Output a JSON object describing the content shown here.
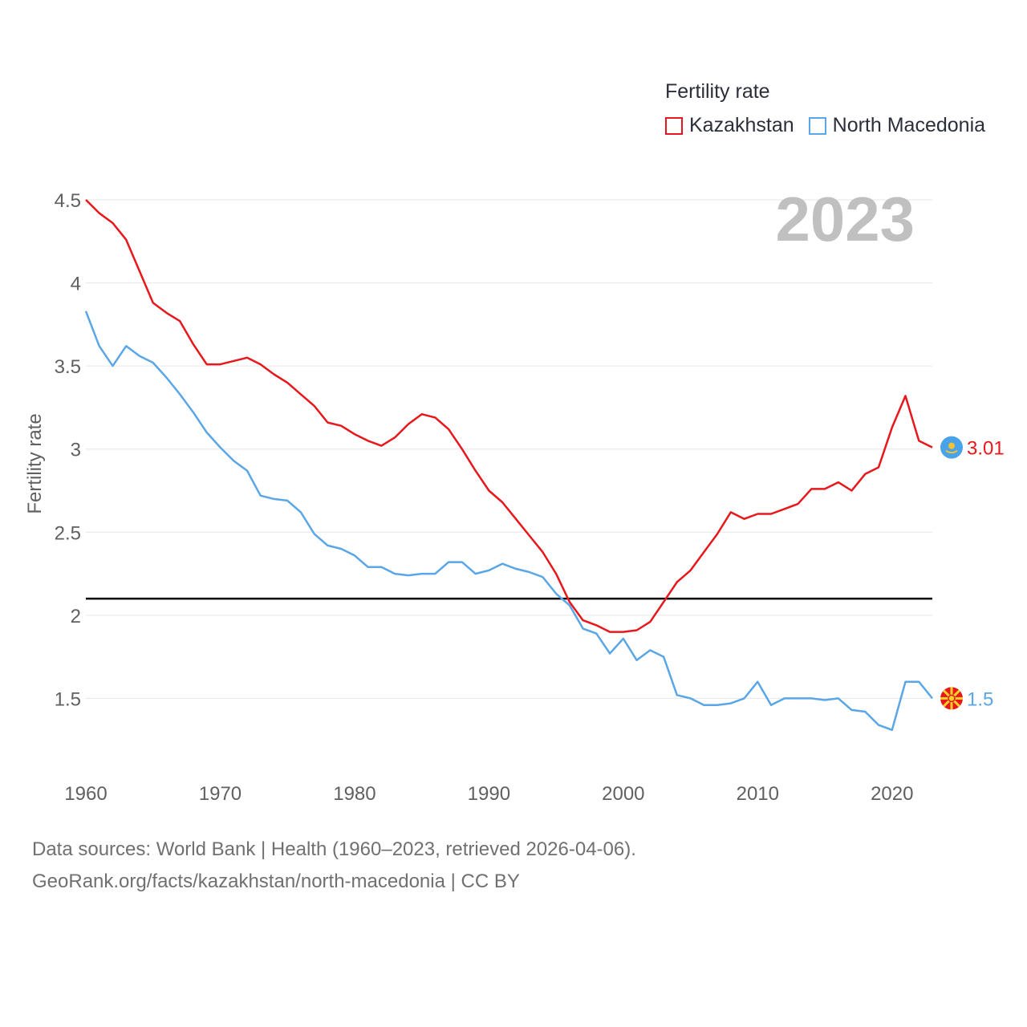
{
  "legend": {
    "title": "Fertility rate",
    "items": [
      {
        "name": "Kazakhstan",
        "color": "#e8171b"
      },
      {
        "name": "North Macedonia",
        "color": "#5aa6e6"
      }
    ]
  },
  "current_year": "2023",
  "source": {
    "line1": "Data sources: World Bank | Health (1960–2023, retrieved 2026-04-06).",
    "line2": "GeoRank.org/facts/kazakhstan/north-macedonia | CC BY"
  },
  "chart_data": {
    "type": "line",
    "title": "Fertility rate",
    "xlabel": "",
    "ylabel": "Fertility rate",
    "xlim": [
      1960,
      2023
    ],
    "ylim": [
      1.0,
      4.5
    ],
    "x_ticks": [
      1960,
      1970,
      1980,
      1990,
      2000,
      2010,
      2020
    ],
    "y_ticks": [
      1.5,
      2,
      2.5,
      3,
      3.5,
      4,
      4.5
    ],
    "y_tick_labels": [
      "1.5",
      "2",
      "2.5",
      "3",
      "3.5",
      "4",
      "4.5"
    ],
    "reference_line": 2.1,
    "grid": true,
    "x": [
      1960,
      1961,
      1962,
      1963,
      1964,
      1965,
      1966,
      1967,
      1968,
      1969,
      1970,
      1971,
      1972,
      1973,
      1974,
      1975,
      1976,
      1977,
      1978,
      1979,
      1980,
      1981,
      1982,
      1983,
      1984,
      1985,
      1986,
      1987,
      1988,
      1989,
      1990,
      1991,
      1992,
      1993,
      1994,
      1995,
      1996,
      1997,
      1998,
      1999,
      2000,
      2001,
      2002,
      2003,
      2004,
      2005,
      2006,
      2007,
      2008,
      2009,
      2010,
      2011,
      2012,
      2013,
      2014,
      2015,
      2016,
      2017,
      2018,
      2019,
      2020,
      2021,
      2022,
      2023
    ],
    "series": [
      {
        "name": "Kazakhstan",
        "color": "#e8171b",
        "end_label": "3.01",
        "values": [
          4.5,
          4.42,
          4.36,
          4.26,
          4.07,
          3.88,
          3.82,
          3.77,
          3.63,
          3.51,
          3.51,
          3.53,
          3.55,
          3.51,
          3.45,
          3.4,
          3.33,
          3.26,
          3.16,
          3.14,
          3.09,
          3.05,
          3.02,
          3.07,
          3.15,
          3.21,
          3.19,
          3.12,
          3.0,
          2.87,
          2.75,
          2.68,
          2.58,
          2.48,
          2.38,
          2.25,
          2.08,
          1.97,
          1.94,
          1.9,
          1.9,
          1.91,
          1.96,
          2.08,
          2.2,
          2.27,
          2.38,
          2.49,
          2.62,
          2.58,
          2.61,
          2.61,
          2.64,
          2.67,
          2.76,
          2.76,
          2.8,
          2.75,
          2.85,
          2.89,
          3.13,
          3.32,
          3.05,
          3.01
        ]
      },
      {
        "name": "North Macedonia",
        "color": "#5aa6e6",
        "end_label": "1.5",
        "values": [
          3.83,
          3.62,
          3.5,
          3.62,
          3.56,
          3.52,
          3.43,
          3.33,
          3.22,
          3.1,
          3.01,
          2.93,
          2.87,
          2.72,
          2.7,
          2.69,
          2.62,
          2.49,
          2.42,
          2.4,
          2.36,
          2.29,
          2.29,
          2.25,
          2.24,
          2.25,
          2.25,
          2.32,
          2.32,
          2.25,
          2.27,
          2.31,
          2.28,
          2.26,
          2.23,
          2.13,
          2.06,
          1.92,
          1.89,
          1.77,
          1.86,
          1.73,
          1.79,
          1.75,
          1.52,
          1.5,
          1.46,
          1.46,
          1.47,
          1.5,
          1.6,
          1.46,
          1.5,
          1.5,
          1.5,
          1.49,
          1.5,
          1.43,
          1.42,
          1.34,
          1.31,
          1.6,
          1.6,
          1.5
        ]
      }
    ]
  }
}
